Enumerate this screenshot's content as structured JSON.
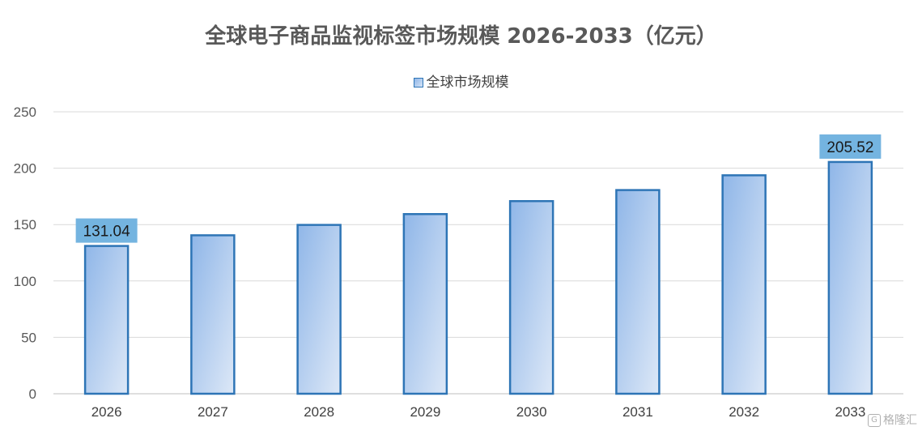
{
  "chart_data": {
    "type": "bar",
    "title": "全球电子商品监视标签市场规模 2026-2033（亿元）",
    "categories": [
      "2026",
      "2027",
      "2028",
      "2029",
      "2030",
      "2031",
      "2032",
      "2033"
    ],
    "series": [
      {
        "name": "全球市场规模",
        "values": [
          131.04,
          140.5,
          149.7,
          159.3,
          170.8,
          180.6,
          193.7,
          205.52
        ]
      }
    ],
    "data_labels": {
      "2026": "131.04",
      "2033": "205.52"
    },
    "ylim": [
      0,
      250
    ],
    "yticks": [
      0,
      50,
      100,
      150,
      200,
      250
    ],
    "grid": true,
    "legend_position": "top",
    "colors": {
      "bar_fill_start": "#8fb6e8",
      "bar_fill_end": "#dde8f7",
      "bar_stroke": "#2e75b6",
      "label_bg": "#74b4e0"
    }
  },
  "watermark": {
    "text": "格隆汇",
    "icon": "g-logo-icon"
  }
}
